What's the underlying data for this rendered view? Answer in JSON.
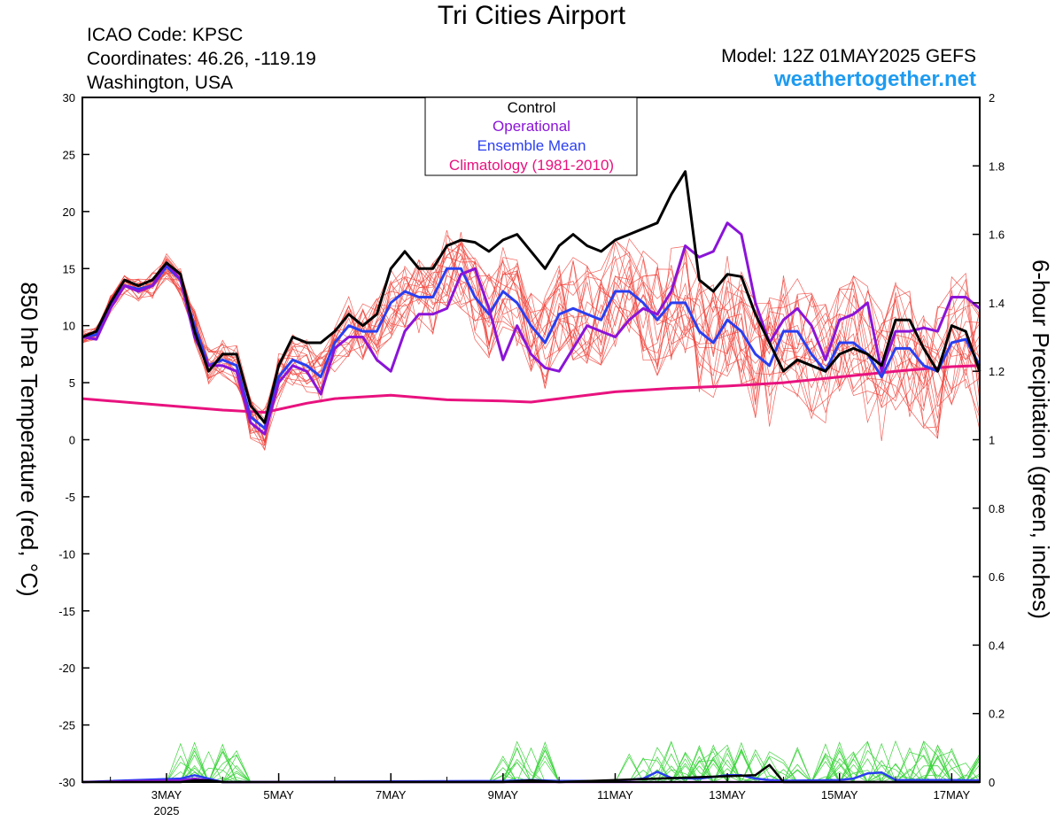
{
  "header": {
    "title": "Tri Cities Airport",
    "icao": "ICAO Code: KPSC",
    "coords": "Coordinates: 46.26, -119.19",
    "location": "Washington, USA",
    "model": "Model: 12Z 01MAY2025 GEFS",
    "site": "weathertogether.net"
  },
  "colors": {
    "control": "#000000",
    "operational": "#8a14d8",
    "ensemble_mean": "#2a3ef0",
    "climatology": "#e8127e",
    "member_temp": "#f0443c",
    "member_precip": "#3ad43a",
    "site": "#1e9bf0"
  },
  "chart_data": {
    "type": "line",
    "title": "Tri Cities Airport",
    "ylabel": "850 hPa Temperature (red, °C)",
    "y2label": "6-hour Precipitation (green, inches)",
    "x_range_days": [
      "2025-05-01 12Z",
      "2025-05-17 12Z"
    ],
    "ylim": [
      -30,
      30
    ],
    "y2lim": [
      0,
      2
    ],
    "yticks": [
      30,
      25,
      20,
      15,
      10,
      5,
      0,
      -5,
      -10,
      -15,
      -20,
      -25,
      -30
    ],
    "y2ticks": [
      2,
      1.8,
      1.6,
      1.4,
      1.2,
      1,
      0.8,
      0.6,
      0.4,
      0.2,
      0
    ],
    "xticks": [
      {
        "day": 3,
        "label": "3MAY",
        "sub": "2025"
      },
      {
        "day": 5,
        "label": "5MAY",
        "sub": ""
      },
      {
        "day": 7,
        "label": "7MAY",
        "sub": ""
      },
      {
        "day": 9,
        "label": "9MAY",
        "sub": ""
      },
      {
        "day": 11,
        "label": "11MAY",
        "sub": ""
      },
      {
        "day": 13,
        "label": "13MAY",
        "sub": ""
      },
      {
        "day": 15,
        "label": "15MAY",
        "sub": ""
      },
      {
        "day": 17,
        "label": "17MAY",
        "sub": ""
      }
    ],
    "legend": [
      "Control",
      "Operational",
      "Ensemble Mean",
      "Climatology (1981-2010)"
    ],
    "legend_position": "top-center",
    "series": [
      {
        "name": "Control",
        "axis": "temp",
        "color": "#000000",
        "x": [
          1.5,
          1.75,
          2.0,
          2.25,
          2.5,
          2.75,
          3.0,
          3.25,
          3.5,
          3.75,
          4.0,
          4.25,
          4.5,
          4.75,
          5.0,
          5.25,
          5.5,
          5.75,
          6.0,
          6.25,
          6.5,
          6.75,
          7.0,
          7.25,
          7.5,
          7.75,
          8.0,
          8.25,
          8.5,
          8.75,
          9.0,
          9.25,
          9.5,
          9.75,
          10.0,
          10.25,
          10.5,
          10.75,
          11.0,
          11.25,
          11.5,
          11.75,
          12.0,
          12.25,
          12.5,
          12.75,
          13.0,
          13.25,
          13.5,
          13.75,
          14.0,
          14.25,
          14.5,
          14.75,
          15.0,
          15.25,
          15.5,
          15.75,
          16.0,
          16.25,
          16.5,
          16.75,
          17.0,
          17.25,
          17.5
        ],
        "values": [
          9.0,
          9.5,
          12.0,
          14.0,
          13.5,
          14.0,
          15.5,
          14.5,
          9.5,
          6.0,
          7.5,
          7.5,
          3.0,
          1.5,
          6.5,
          9.0,
          8.5,
          8.5,
          9.5,
          11.0,
          10.0,
          11.0,
          15.0,
          16.5,
          15.0,
          15.0,
          17.0,
          17.5,
          17.3,
          16.5,
          17.5,
          18.0,
          16.5,
          15.0,
          17.0,
          18.0,
          17.0,
          16.5,
          17.5,
          18.0,
          18.5,
          19.0,
          21.5,
          23.5,
          14.0,
          13.0,
          14.5,
          14.3,
          11.0,
          8.5,
          6.0,
          7.0,
          6.5,
          6.0,
          7.5,
          8.0,
          7.5,
          6.5,
          10.5,
          10.5,
          8.0,
          6.0,
          10.0,
          9.5,
          6.0
        ]
      },
      {
        "name": "Operational",
        "axis": "temp",
        "color": "#8a14d8",
        "x": [
          1.5,
          1.75,
          2.0,
          2.25,
          2.5,
          2.75,
          3.0,
          3.25,
          3.5,
          3.75,
          4.0,
          4.25,
          4.5,
          4.75,
          5.0,
          5.25,
          5.5,
          5.75,
          6.0,
          6.25,
          6.5,
          6.75,
          7.0,
          7.25,
          7.5,
          7.75,
          8.0,
          8.25,
          8.5,
          8.75,
          9.0,
          9.25,
          9.5,
          9.75,
          10.0,
          10.25,
          10.5,
          10.75,
          11.0,
          11.25,
          11.5,
          11.75,
          12.0,
          12.25,
          12.5,
          12.75,
          13.0,
          13.25,
          13.5,
          13.75,
          14.0,
          14.25,
          14.5,
          14.75,
          15.0,
          15.25,
          15.5,
          15.75,
          16.0,
          16.25,
          16.5,
          16.75,
          17.0,
          17.25,
          17.5
        ],
        "values": [
          9.0,
          8.8,
          11.5,
          13.5,
          13.0,
          13.5,
          15.5,
          14.0,
          9.0,
          6.5,
          6.5,
          6.0,
          1.5,
          0.5,
          5.0,
          6.5,
          6.0,
          4.0,
          8.0,
          9.0,
          9.0,
          7.0,
          6.0,
          9.5,
          11.0,
          11.0,
          11.5,
          14.5,
          15.0,
          11.5,
          7.0,
          10.0,
          7.5,
          6.3,
          6.0,
          8.0,
          10.0,
          9.5,
          9.0,
          10.5,
          11.5,
          11.0,
          13.0,
          17.0,
          16.0,
          16.5,
          19.0,
          18.0,
          12.0,
          8.5,
          10.5,
          11.5,
          10.0,
          7.0,
          10.5,
          11.0,
          12.0,
          6.0,
          9.5,
          9.5,
          9.8,
          9.5,
          12.5,
          12.5,
          11.5
        ]
      },
      {
        "name": "Ensemble Mean",
        "axis": "temp",
        "color": "#2a3ef0",
        "x": [
          1.5,
          1.75,
          2.0,
          2.25,
          2.5,
          2.75,
          3.0,
          3.25,
          3.5,
          3.75,
          4.0,
          4.25,
          4.5,
          4.75,
          5.0,
          5.25,
          5.5,
          5.75,
          6.0,
          6.25,
          6.5,
          6.75,
          7.0,
          7.25,
          7.5,
          7.75,
          8.0,
          8.25,
          8.5,
          8.75,
          9.0,
          9.25,
          9.5,
          9.75,
          10.0,
          10.25,
          10.5,
          10.75,
          11.0,
          11.25,
          11.5,
          11.75,
          12.0,
          12.25,
          12.5,
          12.75,
          13.0,
          13.25,
          13.5,
          13.75,
          14.0,
          14.25,
          14.5,
          14.75,
          15.0,
          15.25,
          15.5,
          15.75,
          16.0,
          16.25,
          16.5,
          16.75,
          17.0,
          17.25,
          17.5
        ],
        "values": [
          9.0,
          9.2,
          11.8,
          13.5,
          13.2,
          13.5,
          15.2,
          14.0,
          10.0,
          6.5,
          7.0,
          6.5,
          2.0,
          1.0,
          5.5,
          7.0,
          6.5,
          5.5,
          8.5,
          10.0,
          9.5,
          9.5,
          12.0,
          13.0,
          12.5,
          12.5,
          15.0,
          15.0,
          12.5,
          11.0,
          13.0,
          12.0,
          10.0,
          8.5,
          11.0,
          11.5,
          11.0,
          10.5,
          13.0,
          13.0,
          12.0,
          10.5,
          12.0,
          12.0,
          9.5,
          8.5,
          10.5,
          9.5,
          7.5,
          6.5,
          9.5,
          9.5,
          7.5,
          6.0,
          8.5,
          8.5,
          7.5,
          5.5,
          8.0,
          8.0,
          6.5,
          6.0,
          8.5,
          8.8,
          6.5
        ]
      },
      {
        "name": "Climatology (1981-2010)",
        "axis": "temp",
        "color": "#e8127e",
        "x": [
          1.5,
          2.0,
          3.0,
          4.0,
          4.75,
          5.5,
          6.0,
          7.0,
          8.0,
          9.0,
          9.5,
          10.0,
          11.0,
          12.0,
          13.0,
          14.0,
          15.0,
          16.0,
          17.0,
          17.5
        ],
        "values": [
          3.6,
          3.4,
          3.0,
          2.6,
          2.4,
          3.2,
          3.6,
          3.9,
          3.5,
          3.4,
          3.3,
          3.6,
          4.2,
          4.5,
          4.7,
          5.0,
          5.5,
          6.0,
          6.4,
          6.5
        ]
      },
      {
        "name": "Control precip",
        "axis": "precip",
        "color": "#000000",
        "x": [
          1.5,
          3.25,
          3.5,
          3.75,
          4.0,
          9.0,
          9.5,
          10.0,
          13.5,
          13.75,
          13.9,
          14.0,
          17.5
        ],
        "values": [
          0,
          0,
          0.005,
          0.005,
          0,
          0,
          0.005,
          0,
          0.02,
          0.05,
          0.02,
          0,
          0
        ]
      },
      {
        "name": "Operational precip",
        "axis": "precip",
        "color": "#8a14d8",
        "x": [
          1.5,
          3.25,
          3.5,
          3.75,
          4.0,
          17.5
        ],
        "values": [
          0,
          0.005,
          0.01,
          0.005,
          0,
          0
        ]
      },
      {
        "name": "Ensemble Mean precip",
        "axis": "precip",
        "color": "#2a3ef0",
        "x": [
          1.5,
          3.25,
          3.5,
          3.75,
          4.0,
          9.0,
          9.5,
          10.0,
          11.0,
          11.5,
          11.75,
          12.0,
          12.5,
          13.0,
          13.25,
          13.5,
          13.75,
          14.0,
          15.0,
          15.25,
          15.5,
          15.75,
          16.0,
          16.5,
          17.0,
          17.5
        ],
        "values": [
          0,
          0.01,
          0.02,
          0.01,
          0,
          0.003,
          0.006,
          0.003,
          0.003,
          0.01,
          0.03,
          0.012,
          0.01,
          0.02,
          0.02,
          0.01,
          0.006,
          0.004,
          0.006,
          0.01,
          0.025,
          0.028,
          0.006,
          0.006,
          0.006,
          0.005
        ]
      }
    ]
  }
}
